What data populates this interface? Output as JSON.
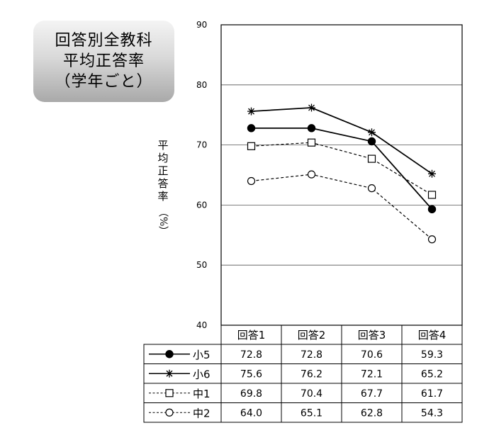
{
  "title": {
    "lines": [
      "回答別全教科",
      "平均正答率",
      "（学年ごと）"
    ]
  },
  "ylabel": {
    "chars": [
      "平",
      "均",
      "正",
      "答",
      "率"
    ],
    "unit": "（%）"
  },
  "chart_data": {
    "type": "line",
    "categories": [
      "回答1",
      "回答2",
      "回答3",
      "回答4"
    ],
    "ylim": [
      40,
      90
    ],
    "yticks": [
      40,
      50,
      60,
      70,
      80,
      90
    ],
    "grid": true,
    "series": [
      {
        "name": "小5",
        "values": [
          72.8,
          72.8,
          70.6,
          59.3
        ],
        "line": "solid",
        "marker": "filled-circle",
        "display": [
          "72.8",
          "72.8",
          "70.6",
          "59.3"
        ]
      },
      {
        "name": "小6",
        "values": [
          75.6,
          76.2,
          72.1,
          65.2
        ],
        "line": "solid",
        "marker": "asterisk",
        "display": [
          "75.6",
          "76.2",
          "72.1",
          "65.2"
        ]
      },
      {
        "name": "中1",
        "values": [
          69.8,
          70.4,
          67.7,
          61.7
        ],
        "line": "dashed",
        "marker": "open-square",
        "display": [
          "69.8",
          "70.4",
          "67.7",
          "61.7"
        ]
      },
      {
        "name": "中2",
        "values": [
          64.0,
          65.1,
          62.8,
          54.3
        ],
        "line": "dashed",
        "marker": "open-circle",
        "display": [
          "64.0",
          "65.1",
          "62.8",
          "54.3"
        ]
      }
    ],
    "legend": "data table below chart"
  }
}
